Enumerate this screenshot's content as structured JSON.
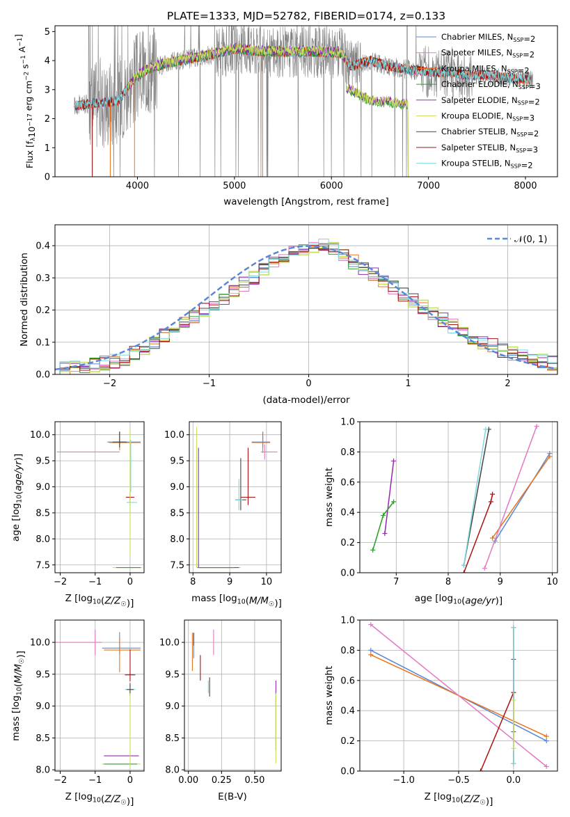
{
  "figure": {
    "title": "PLATE=1333, MJD=52782, FIBERID=0174, z=0.133"
  },
  "colors": {
    "chabrier_miles": "#5b87d4",
    "salpeter_miles": "#e377c2",
    "kroupa_miles": "#e8731c",
    "chabrier_elodie": "#2ca02c",
    "salpeter_elodie": "#9428b0",
    "kroupa_elodie": "#c8e060",
    "chabrier_stelib": "#444444",
    "salpeter_stelib": "#aa1111",
    "kroupa_stelib": "#7dd8dc",
    "data_gray": "#808080",
    "gaussian": "#5b87d4"
  },
  "legend_spectrum": [
    {
      "label": "Chabrier MILES, N",
      "sub": "SSP",
      "tail": "=2",
      "color_key": "chabrier_miles"
    },
    {
      "label": "Salpeter MILES, N",
      "sub": "SSP",
      "tail": "=2",
      "color_key": "salpeter_miles"
    },
    {
      "label": "Kroupa MILES, N",
      "sub": "SSP",
      "tail": "=2",
      "color_key": "kroupa_miles"
    },
    {
      "label": "Chabrier ELODIE, N",
      "sub": "SSP",
      "tail": "=3",
      "color_key": "chabrier_elodie"
    },
    {
      "label": "Salpeter ELODIE, N",
      "sub": "SSP",
      "tail": "=2",
      "color_key": "salpeter_elodie"
    },
    {
      "label": "Kroupa ELODIE, N",
      "sub": "SSP",
      "tail": "=3",
      "color_key": "kroupa_elodie"
    },
    {
      "label": "Chabrier STELIB, N",
      "sub": "SSP",
      "tail": "=2",
      "color_key": "chabrier_stelib"
    },
    {
      "label": "Salpeter STELIB, N",
      "sub": "SSP",
      "tail": "=3",
      "color_key": "salpeter_stelib"
    },
    {
      "label": "Kroupa STELIB, N",
      "sub": "SSP",
      "tail": "=2",
      "color_key": "kroupa_stelib"
    }
  ],
  "legend_hist": {
    "label": "𝒩(0, 1)"
  },
  "chart_data": [
    {
      "id": "spectrum",
      "type": "line",
      "xlabel": "wavelength [Angstrom, rest frame]",
      "ylabel": "Flux [f",
      "ylabel_parts": [
        "Flux [f",
        "λ",
        "10",
        "−17",
        " erg cm",
        "−2",
        " s",
        "−1",
        " A",
        "−1",
        "]"
      ],
      "xlim": [
        3150,
        8330
      ],
      "ylim": [
        0,
        5.2
      ],
      "xticks": [
        4000,
        5000,
        6000,
        7000,
        8000
      ],
      "yticks": [
        0,
        1,
        2,
        3,
        4,
        5
      ],
      "grid": false,
      "legend_position": "top-right",
      "model_continuum_x": [
        3350,
        3600,
        3800,
        3950,
        4100,
        4300,
        4600,
        4900,
        5000,
        5300,
        5600,
        5900,
        6100,
        6200,
        6400,
        6600,
        6800,
        7000,
        7200,
        7400,
        7600,
        7800,
        8050
      ],
      "model_continuum_y": [
        2.45,
        2.55,
        2.6,
        3.3,
        3.7,
        3.9,
        4.1,
        4.3,
        4.4,
        4.3,
        4.3,
        4.3,
        4.25,
        3.8,
        4.0,
        3.8,
        3.7,
        3.6,
        3.6,
        3.5,
        3.5,
        3.4,
        3.35
      ],
      "elodie_drop": {
        "x": [
          6150,
          6200,
          6400,
          6600,
          6790
        ],
        "y": [
          3.0,
          2.95,
          2.6,
          2.55,
          2.45
        ]
      }
    },
    {
      "id": "residual_hist",
      "type": "line",
      "xlabel": "(data-model)/error",
      "ylabel": "Normed distribution",
      "xlim": [
        -2.55,
        2.5
      ],
      "ylim": [
        0,
        0.465
      ],
      "xticks": [
        -2,
        -1,
        0,
        1,
        2
      ],
      "yticks": [
        0.0,
        0.1,
        0.2,
        0.3,
        0.4
      ],
      "grid": true,
      "legend_position": "top-right",
      "bin_centers": [
        -2.45,
        -2.35,
        -2.25,
        -2.15,
        -2.05,
        -1.95,
        -1.85,
        -1.75,
        -1.65,
        -1.55,
        -1.45,
        -1.35,
        -1.25,
        -1.15,
        -1.05,
        -0.95,
        -0.85,
        -0.75,
        -0.65,
        -0.55,
        -0.45,
        -0.35,
        -0.25,
        -0.15,
        -0.05,
        0.05,
        0.15,
        0.25,
        0.35,
        0.45,
        0.55,
        0.65,
        0.75,
        0.85,
        0.95,
        1.05,
        1.15,
        1.25,
        1.35,
        1.45,
        1.55,
        1.65,
        1.75,
        1.85,
        1.95,
        2.05,
        2.15,
        2.25,
        2.35,
        2.45
      ],
      "hist_values": [
        0.02,
        0.02,
        0.025,
        0.03,
        0.035,
        0.04,
        0.05,
        0.065,
        0.08,
        0.1,
        0.12,
        0.14,
        0.16,
        0.18,
        0.2,
        0.22,
        0.24,
        0.26,
        0.28,
        0.3,
        0.33,
        0.35,
        0.37,
        0.38,
        0.39,
        0.4,
        0.4,
        0.39,
        0.37,
        0.35,
        0.33,
        0.31,
        0.29,
        0.27,
        0.25,
        0.23,
        0.21,
        0.19,
        0.17,
        0.15,
        0.13,
        0.11,
        0.1,
        0.09,
        0.075,
        0.065,
        0.055,
        0.045,
        0.04,
        0.035
      ],
      "gaussian": {
        "mu": 0,
        "sigma": 1
      }
    },
    {
      "id": "z_age",
      "type": "scatter",
      "xlabel": "Z [log10(Z/Z☉)]",
      "ylabel": "age [log10(age/yr)]",
      "xlim": [
        -2.15,
        0.4
      ],
      "ylim": [
        7.35,
        10.25
      ],
      "xticks": [
        -2,
        -1,
        0
      ],
      "yticks": [
        7.5,
        8.0,
        8.5,
        9.0,
        9.5,
        10.0
      ],
      "grid": true
    },
    {
      "id": "mass_age",
      "type": "scatter",
      "xlabel": "mass [log10(M/M☉)]",
      "xlim": [
        7.9,
        10.4
      ],
      "ylim": [
        7.35,
        10.25
      ],
      "xticks": [
        8,
        9,
        10
      ],
      "yticks": [
        7.5,
        8.0,
        8.5,
        9.0,
        9.5,
        10.0
      ],
      "grid": true
    },
    {
      "id": "age_weight",
      "type": "line",
      "xlabel": "age [log10(age/yr)]",
      "ylabel": "mass weight",
      "xlim": [
        6.3,
        10.1
      ],
      "ylim": [
        0,
        1.0
      ],
      "xticks": [
        7,
        8,
        9,
        10
      ],
      "yticks": [
        0.0,
        0.2,
        0.4,
        0.6,
        0.8,
        1.0
      ],
      "grid": true,
      "series": [
        {
          "color_key": "chabrier_miles",
          "x": [
            8.9,
            9.95
          ],
          "y": [
            0.21,
            0.79
          ]
        },
        {
          "color_key": "kroupa_miles",
          "x": [
            8.85,
            9.95
          ],
          "y": [
            0.23,
            0.77
          ]
        },
        {
          "color_key": "salpeter_miles",
          "x": [
            8.7,
            9.7
          ],
          "y": [
            0.03,
            0.97
          ]
        },
        {
          "color_key": "salpeter_stelib",
          "x": [
            8.3,
            8.82,
            8.85
          ],
          "y": [
            0.0,
            0.47,
            0.52
          ]
        },
        {
          "color_key": "chabrier_stelib",
          "x": [
            8.3,
            8.78
          ],
          "y": [
            0.05,
            0.95
          ]
        },
        {
          "color_key": "kroupa_stelib",
          "x": [
            8.3,
            8.72
          ],
          "y": [
            0.05,
            0.95
          ]
        },
        {
          "color_key": "salpeter_elodie",
          "x": [
            6.78,
            6.95
          ],
          "y": [
            0.26,
            0.74
          ]
        },
        {
          "color_key": "kroupa_elodie",
          "x": [
            6.55,
            6.75,
            6.95
          ],
          "y": [
            0.15,
            0.38,
            0.47
          ]
        },
        {
          "color_key": "chabrier_elodie",
          "x": [
            6.55,
            6.75,
            6.95
          ],
          "y": [
            0.15,
            0.38,
            0.47
          ]
        }
      ]
    },
    {
      "id": "z_mass",
      "type": "scatter",
      "xlabel": "Z [log10(Z/Z☉)]",
      "ylabel": "mass [log10(M/M☉)]",
      "xlim": [
        -2.15,
        0.4
      ],
      "ylim": [
        7.98,
        10.35
      ],
      "xticks": [
        -2,
        -1,
        0
      ],
      "yticks": [
        8.0,
        8.5,
        9.0,
        9.5,
        10.0
      ],
      "grid": true
    },
    {
      "id": "ebv_mass",
      "type": "scatter",
      "xlabel": "E(B-V)",
      "xlim": [
        -0.03,
        0.7
      ],
      "ylim": [
        7.98,
        10.35
      ],
      "xticks": [
        0.0,
        0.25,
        0.5
      ],
      "yticks": [
        8.0,
        8.5,
        9.0,
        9.5,
        10.0
      ],
      "grid": true
    },
    {
      "id": "z_weight",
      "type": "line",
      "xlabel": "Z [log10(Z/Z☉)]",
      "ylabel": "mass weight",
      "xlim": [
        -1.4,
        0.4
      ],
      "ylim": [
        0,
        1.0
      ],
      "xticks": [
        -1.0,
        -0.5,
        0.0
      ],
      "yticks": [
        0.0,
        0.2,
        0.4,
        0.6,
        0.8,
        1.0
      ],
      "grid": true,
      "series": [
        {
          "color_key": "chabrier_miles",
          "x": [
            -1.3,
            0.3
          ],
          "y": [
            0.8,
            0.2
          ]
        },
        {
          "color_key": "kroupa_miles",
          "x": [
            -1.3,
            0.3
          ],
          "y": [
            0.77,
            0.23
          ]
        },
        {
          "color_key": "salpeter_miles",
          "x": [
            -1.3,
            0.3
          ],
          "y": [
            0.97,
            0.03
          ]
        },
        {
          "color_key": "salpeter_stelib",
          "x": [
            -0.3,
            0.0
          ],
          "y": [
            0.0,
            0.52
          ]
        },
        {
          "color_key": "salpeter_elodie",
          "x": [
            0.0,
            0.0
          ],
          "y": [
            0.26,
            0.74
          ]
        },
        {
          "color_key": "chabrier_stelib",
          "x": [
            0.0,
            0.0
          ],
          "y": [
            0.05,
            0.95
          ]
        },
        {
          "color_key": "kroupa_stelib",
          "x": [
            0.0,
            0.0
          ],
          "y": [
            0.05,
            0.95
          ]
        },
        {
          "color_key": "kroupa_elodie",
          "x": [
            0.0,
            0.0
          ],
          "y": [
            0.15,
            0.47
          ]
        }
      ]
    }
  ]
}
